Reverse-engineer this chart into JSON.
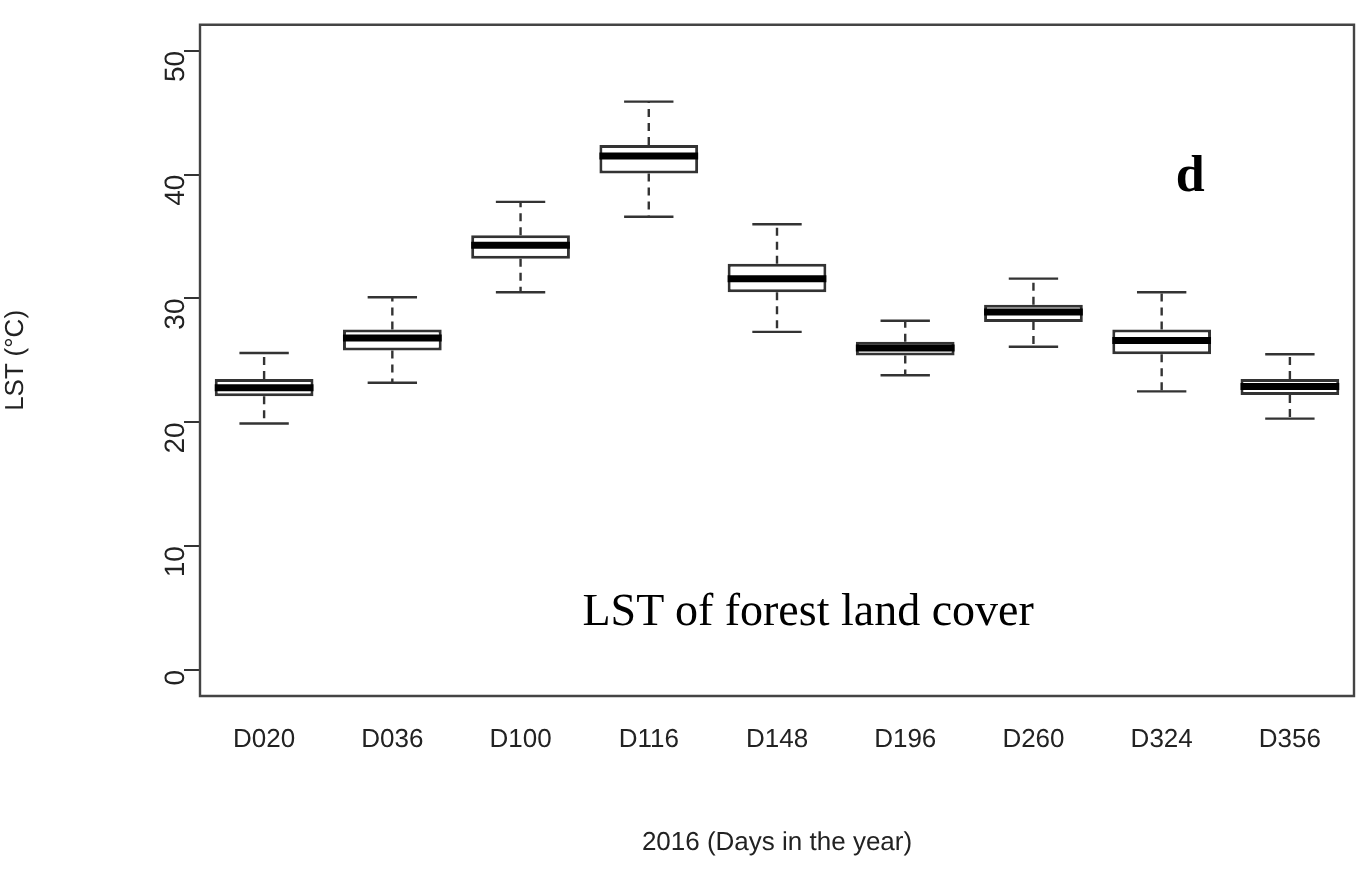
{
  "chart_data": {
    "type": "box",
    "xlabel": "2016 (Days in the year)",
    "ylabel": "LST (°C)",
    "annotations": [
      "LST of forest land cover",
      "d"
    ],
    "categories": [
      "D020",
      "D036",
      "D100",
      "D116",
      "D148",
      "D196",
      "D260",
      "D324",
      "D356"
    ],
    "boxes": [
      {
        "low": 19.9,
        "q1": 22.1,
        "median": 22.8,
        "q3": 23.5,
        "high": 25.6
      },
      {
        "low": 23.2,
        "q1": 25.8,
        "median": 26.8,
        "q3": 27.5,
        "high": 30.1
      },
      {
        "low": 30.5,
        "q1": 33.2,
        "median": 34.3,
        "q3": 35.1,
        "high": 37.8
      },
      {
        "low": 36.6,
        "q1": 40.1,
        "median": 41.5,
        "q3": 42.4,
        "high": 45.9
      },
      {
        "low": 27.3,
        "q1": 30.5,
        "median": 31.6,
        "q3": 32.8,
        "high": 36.0
      },
      {
        "low": 23.8,
        "q1": 25.4,
        "median": 26.0,
        "q3": 26.5,
        "high": 28.2
      },
      {
        "low": 26.1,
        "q1": 28.1,
        "median": 28.9,
        "q3": 29.5,
        "high": 31.6
      },
      {
        "low": 22.5,
        "q1": 25.5,
        "median": 26.6,
        "q3": 27.5,
        "high": 30.5
      },
      {
        "low": 20.3,
        "q1": 22.2,
        "median": 22.9,
        "q3": 23.5,
        "high": 25.5
      }
    ],
    "ylim": [
      -2.1,
      52.1
    ],
    "yticks": [
      0,
      10,
      20,
      30,
      40,
      50
    ],
    "grid": false,
    "legend": false
  }
}
